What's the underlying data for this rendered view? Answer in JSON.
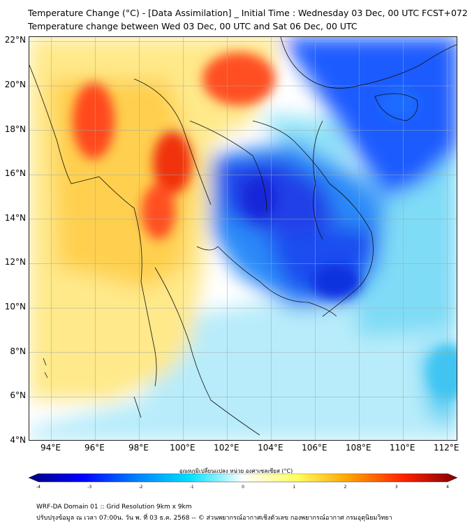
{
  "header": {
    "title_line1": "Temperature Change (°C) - [Data Assimilation] _ Initial Time : Wednesday 03 Dec, 00 UTC FCST+072",
    "title_line2": "Temperature change between Wed 03 Dec, 00 UTC and Sat 06 Dec, 00 UTC"
  },
  "map": {
    "lat_labels": [
      "22°N",
      "20°N",
      "18°N",
      "16°N",
      "14°N",
      "12°N",
      "10°N",
      "8°N",
      "6°N",
      "4°N"
    ],
    "lon_labels": [
      "94°E",
      "96°E",
      "98°E",
      "100°E",
      "102°E",
      "104°E",
      "106°E",
      "108°E",
      "110°E",
      "112°E"
    ],
    "lat_range": [
      4,
      22.2
    ],
    "lon_range": [
      93,
      112.5
    ]
  },
  "colorbar": {
    "title": "อุณหภูมิเปลี่ยนแปลง หน่วย องศาเซลเซียส (°C)",
    "tick_labels": [
      "-4",
      "-3",
      "-2",
      "-1",
      "0",
      "1",
      "2",
      "3",
      "4"
    ],
    "range": [
      -4,
      4
    ],
    "colors": [
      "#00007f",
      "#0000ff",
      "#0080ff",
      "#00e0ff",
      "#ffffff",
      "#ffff60",
      "#ffa000",
      "#ff2000",
      "#7f0000"
    ]
  },
  "footer": {
    "line1": "WRF-DA Domain 01 :: Grid Resolution 9km x 9km",
    "line2": "ปรับปรุงข้อมูล ณ เวลา 07:00น. วัน พ. ที่ 03 ธ.ค. 2568 -- © ส่วนพยากรณ์อากาศเชิงตัวเลข กองพยากรณ์อากาศ กรมอุตุนิยมวิทยา"
  }
}
